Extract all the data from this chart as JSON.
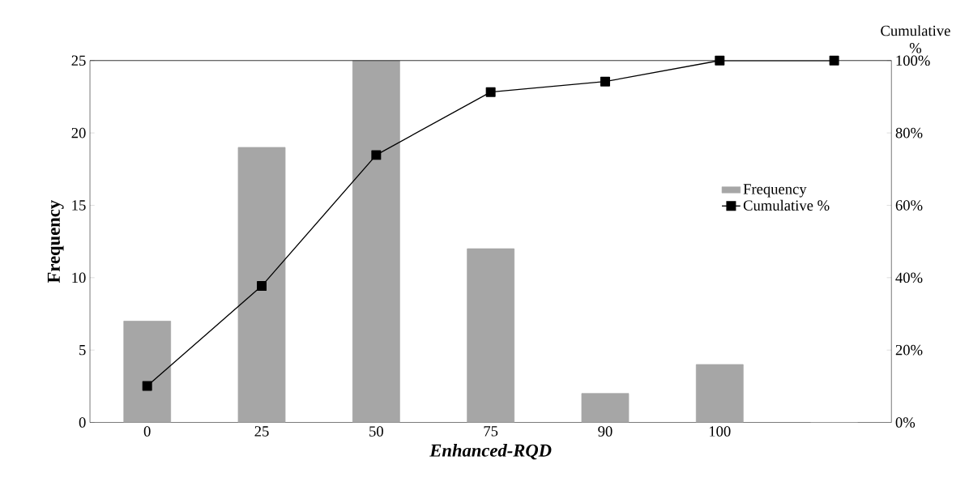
{
  "chart_data": {
    "type": "bar",
    "xlabel": "*Enhanced-RQD*",
    "ylabel": "Frequency",
    "y2label": "Cumulative %",
    "categories": [
      "0",
      "25",
      "50",
      "75",
      "90",
      "100",
      null
    ],
    "series": [
      {
        "name": "Frequency",
        "color": "#a6a6a6",
        "values": [
          7,
          19,
          25,
          12,
          2,
          4,
          0
        ]
      },
      {
        "name": "Cumulative %",
        "type": "line",
        "axis": "y2",
        "color": "#000000",
        "marker": "square",
        "values": [
          10.1,
          37.7,
          73.9,
          91.3,
          94.2,
          100,
          100
        ]
      }
    ],
    "ylim": [
      0,
      25
    ],
    "yticks": [
      0,
      5,
      10,
      15,
      20,
      25
    ],
    "y2lim": [
      0,
      100
    ],
    "y2ticks": [
      {
        "value": 0,
        "label": "0%"
      },
      {
        "value": 20,
        "label": "20%"
      },
      {
        "value": 40,
        "label": "40%"
      },
      {
        "value": 60,
        "label": "60%"
      },
      {
        "value": 80,
        "label": "80%"
      },
      {
        "value": 100,
        "label": "100%"
      }
    ],
    "legend": "right"
  }
}
